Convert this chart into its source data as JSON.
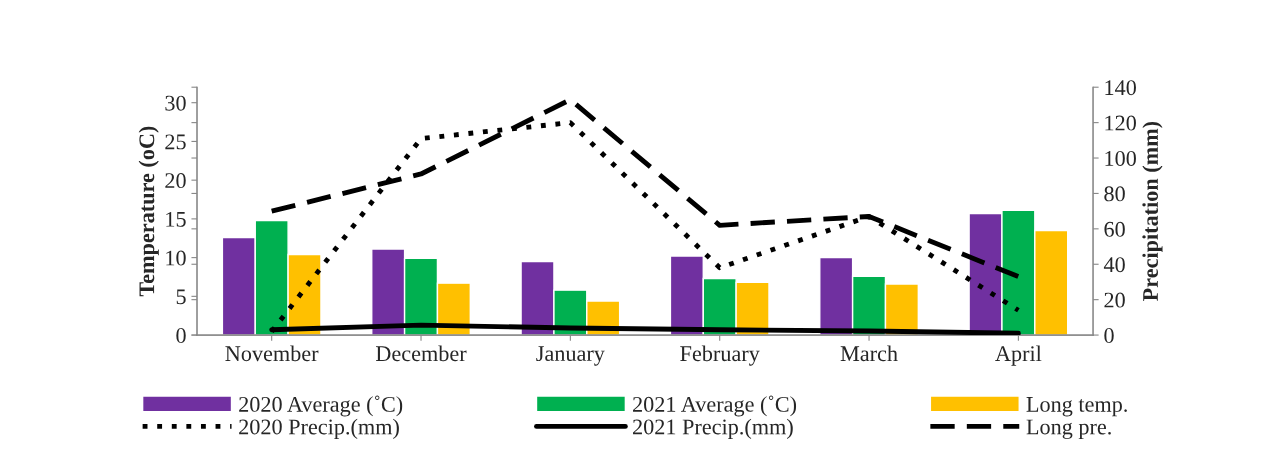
{
  "chart_data": {
    "type": "bar",
    "ylabel": "Temperature (oC)",
    "y2label": "Precipitation (mm)",
    "categories": [
      "November",
      "December",
      "January",
      "February",
      "March",
      "April"
    ],
    "series": [
      {
        "name": "2020 Average (˚C)",
        "color": "#7030a0",
        "values": [
          12.6,
          11.1,
          9.5,
          10.2,
          10.0,
          15.7
        ]
      },
      {
        "name": "2021 Average (˚C)",
        "color": "#00b050",
        "values": [
          14.8,
          9.9,
          5.8,
          7.3,
          7.6,
          16.1
        ]
      },
      {
        "name": "Long temp.",
        "color": "#ffc000",
        "values": [
          10.4,
          6.7,
          4.4,
          6.8,
          6.6,
          13.5
        ]
      },
      {
        "name": "2020 Precip.(mm)",
        "type": "line",
        "axis": "y2",
        "color": "#000000",
        "line_style": "dotted",
        "values": [
          2,
          111,
          120,
          38,
          67,
          14
        ]
      },
      {
        "name": "2021 Precip.(mm)",
        "type": "line",
        "axis": "y2",
        "color": "#000000",
        "line_style": "solid",
        "values": [
          3,
          5.6,
          4,
          3,
          2.3,
          1
        ]
      },
      {
        "name": "Long pre.",
        "type": "line",
        "axis": "y2",
        "color": "#000000",
        "line_style": "dashed",
        "values": [
          70,
          91,
          133,
          62,
          67,
          33
        ]
      }
    ],
    "ylim": [
      0,
      32
    ],
    "yticks": [
      0,
      5,
      10,
      15,
      20,
      25,
      30
    ],
    "y2lim": [
      0,
      140
    ],
    "y2ticks": [
      0,
      20,
      40,
      60,
      80,
      100,
      120,
      140
    ],
    "grid": false,
    "legend": "bottom",
    "marker": "none"
  }
}
